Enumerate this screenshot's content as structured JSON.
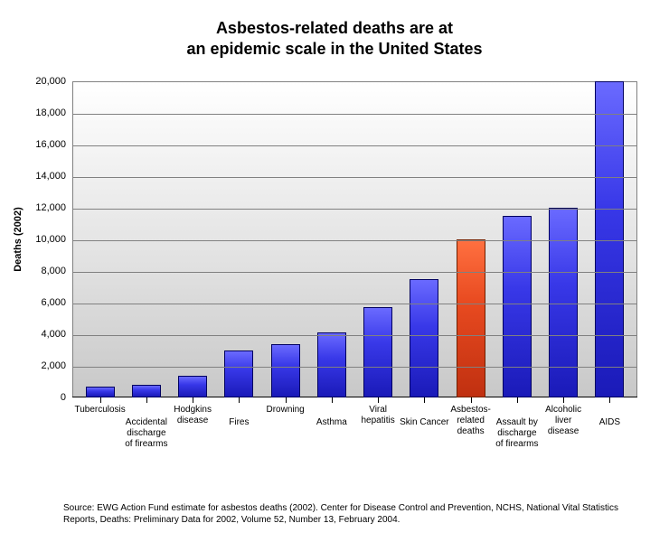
{
  "chart": {
    "type": "bar",
    "title": "Asbestos-related deaths are at\nan epidemic scale in the United States",
    "title_fontsize": 18,
    "title_fontweight": "bold",
    "ylabel": "Deaths (2002)",
    "ylabel_fontsize": 11,
    "ylim": [
      0,
      20000
    ],
    "ytick_step": 2000,
    "ytick_labels": [
      "0",
      "2,000",
      "4,000",
      "6,000",
      "8,000",
      "10,000",
      "12,000",
      "14,000",
      "16,000",
      "18,000",
      "20,000"
    ],
    "xtick_fontsize": 10,
    "ytick_fontsize": 11,
    "background_gradient_top": "#ffffff",
    "background_gradient_bottom": "#c8c8c8",
    "grid_color": "#808080",
    "bar_color": "#2828d0",
    "bar_highlight_color": "#d84518",
    "bar_width": 0.62,
    "categories": [
      {
        "label": "Tuberculosis",
        "value": 700,
        "highlight": false,
        "stagger": 0
      },
      {
        "label": "Accidental\ndischarge\nof firearms",
        "value": 800,
        "highlight": false,
        "stagger": 1
      },
      {
        "label": "Hodgkins\ndisease",
        "value": 1400,
        "highlight": false,
        "stagger": 0
      },
      {
        "label": "Fires",
        "value": 3000,
        "highlight": false,
        "stagger": 1
      },
      {
        "label": "Drowning",
        "value": 3400,
        "highlight": false,
        "stagger": 0
      },
      {
        "label": "Asthma",
        "value": 4100,
        "highlight": false,
        "stagger": 1
      },
      {
        "label": "Viral\nhepatitis",
        "value": 5700,
        "highlight": false,
        "stagger": 0
      },
      {
        "label": "Skin Cancer",
        "value": 7500,
        "highlight": false,
        "stagger": 1
      },
      {
        "label": "Asbestos-related\ndeaths",
        "value": 10000,
        "highlight": true,
        "stagger": 0
      },
      {
        "label": "Assault by\ndischarge\nof firearms",
        "value": 11500,
        "highlight": false,
        "stagger": 1
      },
      {
        "label": "Alcoholic\nliver\ndisease",
        "value": 12000,
        "highlight": false,
        "stagger": 0
      },
      {
        "label": "AIDS",
        "value": 20000,
        "highlight": false,
        "stagger": 1
      }
    ]
  },
  "source": "Source:  EWG Action Fund estimate for asbestos deaths (2002).  Center for Disease Control and Prevention, NCHS, National Vital Statistics Reports, Deaths: Preliminary Data for 2002, Volume 52, Number 13, February 2004.",
  "source_fontsize": 10
}
